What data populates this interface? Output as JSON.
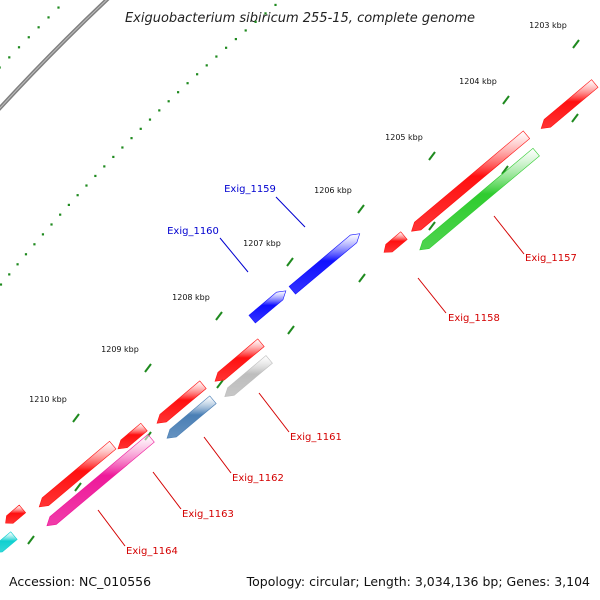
{
  "title": "Exiguobacterium sibiricum 255-15, complete genome",
  "accession_text": "Accession: NC_010556",
  "summary_text": "Topology: circular; Length: 3,034,136 bp; Genes: 3,104",
  "kbp_ticks": [
    "1203 kbp",
    "1204 kbp",
    "1205 kbp",
    "1206 kbp",
    "1207 kbp",
    "1208 kbp",
    "1209 kbp",
    "1210 kbp"
  ],
  "genes": [
    {
      "label": "Exig_1157",
      "strand": "reverse",
      "color": "#d40000",
      "feature_color": "#ff1010"
    },
    {
      "label": "Exig_1158",
      "strand": "reverse",
      "color": "#d40000",
      "feature_color": "#ff1010"
    },
    {
      "label": "Exig_1159",
      "strand": "forward",
      "color": "#0000d0",
      "feature_color": "#1010ff"
    },
    {
      "label": "Exig_1160",
      "strand": "forward",
      "color": "#0000d0",
      "feature_color": "#1010ff"
    },
    {
      "label": "Exig_1161",
      "strand": "reverse",
      "color": "#d40000",
      "feature_color": "#ff1010"
    },
    {
      "label": "Exig_1162",
      "strand": "reverse",
      "color": "#d40000",
      "feature_color": "#ff1010"
    },
    {
      "label": "Exig_1163",
      "strand": "reverse",
      "color": "#d40000",
      "feature_color": "#ff1010"
    },
    {
      "label": "Exig_1164",
      "strand": "reverse",
      "color": "#d40000",
      "feature_color": "#ff1010"
    }
  ],
  "tracks": {
    "cds_color": "#ff1010",
    "forward_color": "#1010ff",
    "green_color": "#2fcc2f",
    "gray_color": "#bdbdbd",
    "steelblue_color": "#4a7fb5",
    "magenta_color": "#ee1a9a",
    "cyan_color": "#10d0d0",
    "backbone_color": "#808080",
    "tick_color": "#1f8a1f"
  }
}
